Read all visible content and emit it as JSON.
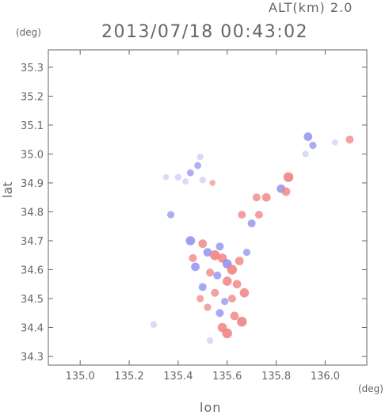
{
  "header": {
    "altitude_label": "ALT(km) 2.0",
    "timestamp": "2013/07/18 00:43:02"
  },
  "chart_data": {
    "type": "heatmap",
    "title": "2013/07/18 00:43:02",
    "annotation": "ALT(km) 2.0",
    "xlabel": "lon",
    "ylabel": "lat",
    "x_unit": "(deg)",
    "y_unit": "(deg)",
    "xlim": [
      134.87,
      136.17
    ],
    "ylim": [
      34.27,
      35.36
    ],
    "x_ticks": [
      "135.0",
      "135.2",
      "135.4",
      "135.6",
      "135.8",
      "136.0"
    ],
    "y_ticks": [
      "34.3",
      "34.4",
      "34.5",
      "34.6",
      "34.7",
      "34.8",
      "34.9",
      "35.0",
      "35.1",
      "35.2",
      "35.3"
    ],
    "grid": false,
    "colors": {
      "positive": "#f08080",
      "negative": "#8a8af0",
      "weak_negative": "#c8c8f4",
      "frame": "#666666"
    },
    "cells": [
      {
        "lon": 135.4,
        "lat": 34.92,
        "v": -0.3
      },
      {
        "lon": 135.45,
        "lat": 34.935,
        "v": -0.35
      },
      {
        "lon": 135.48,
        "lat": 34.96,
        "v": -0.35
      },
      {
        "lon": 135.49,
        "lat": 34.99,
        "v": -0.3
      },
      {
        "lon": 135.43,
        "lat": 34.905,
        "v": -0.25
      },
      {
        "lon": 135.35,
        "lat": 34.92,
        "v": -0.2
      },
      {
        "lon": 135.5,
        "lat": 34.91,
        "v": -0.3
      },
      {
        "lon": 135.37,
        "lat": 34.79,
        "v": -0.4
      },
      {
        "lon": 135.54,
        "lat": 34.9,
        "v": 0.2
      },
      {
        "lon": 135.45,
        "lat": 34.7,
        "v": -0.7
      },
      {
        "lon": 135.5,
        "lat": 34.69,
        "v": 0.6
      },
      {
        "lon": 135.52,
        "lat": 34.66,
        "v": -0.6
      },
      {
        "lon": 135.55,
        "lat": 34.65,
        "v": 0.8
      },
      {
        "lon": 135.58,
        "lat": 34.64,
        "v": 0.7
      },
      {
        "lon": 135.6,
        "lat": 34.62,
        "v": -0.7
      },
      {
        "lon": 135.62,
        "lat": 34.6,
        "v": 0.8
      },
      {
        "lon": 135.65,
        "lat": 34.63,
        "v": 0.6
      },
      {
        "lon": 135.47,
        "lat": 34.61,
        "v": -0.6
      },
      {
        "lon": 135.53,
        "lat": 34.59,
        "v": 0.5
      },
      {
        "lon": 135.56,
        "lat": 34.58,
        "v": -0.5
      },
      {
        "lon": 135.6,
        "lat": 34.56,
        "v": 0.7
      },
      {
        "lon": 135.64,
        "lat": 34.55,
        "v": 0.6
      },
      {
        "lon": 135.5,
        "lat": 34.54,
        "v": -0.5
      },
      {
        "lon": 135.55,
        "lat": 34.52,
        "v": 0.5
      },
      {
        "lon": 135.67,
        "lat": 34.52,
        "v": 0.7
      },
      {
        "lon": 135.62,
        "lat": 34.5,
        "v": 0.5
      },
      {
        "lon": 135.52,
        "lat": 34.47,
        "v": 0.4
      },
      {
        "lon": 135.57,
        "lat": 34.45,
        "v": -0.5
      },
      {
        "lon": 135.63,
        "lat": 34.44,
        "v": 0.6
      },
      {
        "lon": 135.66,
        "lat": 34.42,
        "v": 0.8
      },
      {
        "lon": 135.58,
        "lat": 34.4,
        "v": 0.7
      },
      {
        "lon": 135.6,
        "lat": 34.38,
        "v": 0.8
      },
      {
        "lon": 135.53,
        "lat": 34.355,
        "v": -0.3
      },
      {
        "lon": 135.7,
        "lat": 34.76,
        "v": -0.5
      },
      {
        "lon": 135.73,
        "lat": 34.79,
        "v": 0.5
      },
      {
        "lon": 135.76,
        "lat": 34.85,
        "v": 0.6
      },
      {
        "lon": 135.82,
        "lat": 34.88,
        "v": -0.6
      },
      {
        "lon": 135.85,
        "lat": 34.92,
        "v": 0.8
      },
      {
        "lon": 135.84,
        "lat": 34.87,
        "v": 0.6
      },
      {
        "lon": 135.72,
        "lat": 34.85,
        "v": 0.5
      },
      {
        "lon": 135.66,
        "lat": 34.79,
        "v": 0.5
      },
      {
        "lon": 135.93,
        "lat": 35.06,
        "v": -0.6
      },
      {
        "lon": 135.95,
        "lat": 35.03,
        "v": -0.4
      },
      {
        "lon": 135.92,
        "lat": 35.0,
        "v": -0.3
      },
      {
        "lon": 136.1,
        "lat": 35.05,
        "v": 0.5
      },
      {
        "lon": 136.04,
        "lat": 35.04,
        "v": -0.2
      },
      {
        "lon": 135.3,
        "lat": 34.41,
        "v": -0.3
      },
      {
        "lon": 135.46,
        "lat": 34.64,
        "v": 0.5
      },
      {
        "lon": 135.57,
        "lat": 34.68,
        "v": -0.5
      },
      {
        "lon": 135.68,
        "lat": 34.66,
        "v": -0.4
      },
      {
        "lon": 135.59,
        "lat": 34.49,
        "v": -0.4
      },
      {
        "lon": 135.49,
        "lat": 34.5,
        "v": 0.4
      }
    ]
  }
}
